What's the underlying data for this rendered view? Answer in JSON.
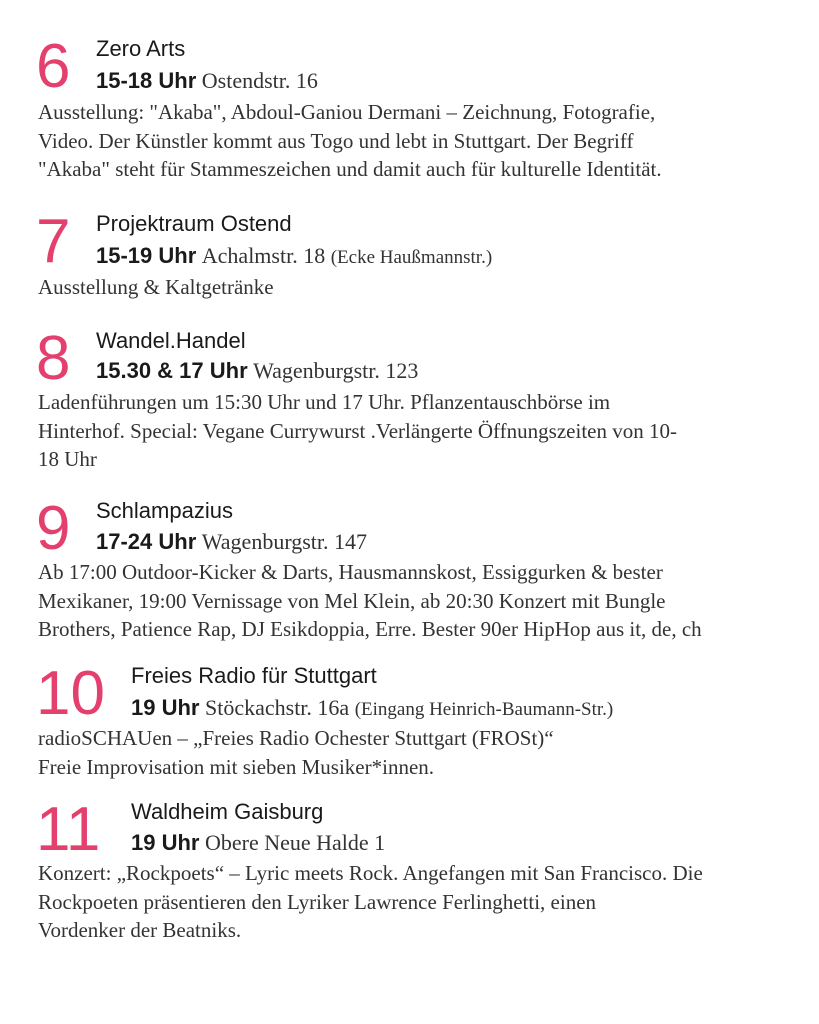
{
  "accent_color": "#e3406e",
  "entries": [
    {
      "number": "6",
      "title": "Zero Arts",
      "time": "15-18 Uhr",
      "address": "Ostendstr. 16",
      "address_note": "",
      "description": "Ausstellung: \"Akaba\", Abdoul-Ganiou Dermani – Zeichnung, Fotografie,\nVideo. Der Künstler kommt aus Togo und lebt in Stuttgart. Der Begriff\n\"Akaba\" steht für Stammeszeichen und damit auch für kulturelle Identität."
    },
    {
      "number": "7",
      "title": "Projektraum Ostend",
      "time": "15-19 Uhr",
      "address": "Achalmstr. 18",
      "address_note": "(Ecke Haußmannstr.)",
      "description": "Ausstellung & Kaltgetränke"
    },
    {
      "number": "8",
      "title": "Wandel.Handel",
      "time": "15.30 & 17 Uhr",
      "address": "Wagenburgstr. 123",
      "address_note": "",
      "description": "Ladenführungen um 15:30 Uhr und 17 Uhr. Pflanzentauschbörse im\nHinterhof. Special: Vegane Currywurst .Verlängerte Öffnungszeiten von 10-\n18 Uhr"
    },
    {
      "number": "9",
      "title": "Schlampazius",
      "time": "17-24 Uhr",
      "address": "Wagenburgstr. 147",
      "address_note": "",
      "description": "Ab 17:00 Outdoor-Kicker & Darts, Hausmannskost, Essiggurken & bester\nMexikaner, 19:00 Vernissage von Mel Klein, ab 20:30 Konzert mit Bungle\nBrothers, Patience Rap, DJ Esikdoppia, Erre. Bester 90er HipHop aus it, de, ch"
    },
    {
      "number": "10",
      "title": "Freies Radio für Stuttgart",
      "time": "19 Uhr",
      "address": "Stöckachstr. 16a",
      "address_note": "(Eingang Heinrich-Baumann-Str.)",
      "description": "radioSCHAUen – „Freies Radio Ochester Stuttgart (FROSt)“\nFreie Improvisation mit sieben Musiker*innen."
    },
    {
      "number": "11",
      "title": "Waldheim Gaisburg",
      "time": "19 Uhr",
      "address": "Obere Neue Halde 1",
      "address_note": "",
      "description": "Konzert: „Rockpoets“ – Lyric meets Rock. Angefangen mit San Francisco. Die\nRockpoeten präsentieren den Lyriker Lawrence Ferlinghetti, einen\nVordenker der Beatniks."
    }
  ]
}
